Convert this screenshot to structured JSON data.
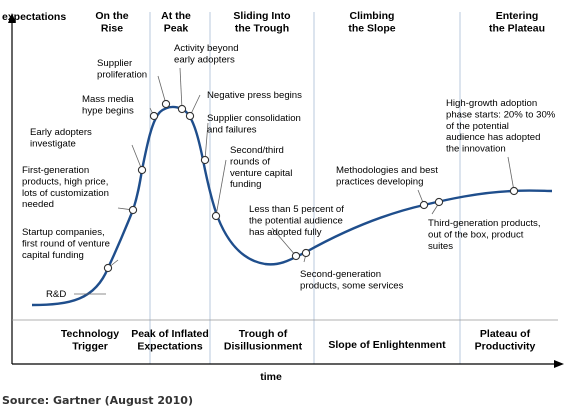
{
  "axes": {
    "y_label": "expectations",
    "x_label": "time"
  },
  "colors": {
    "curve": "#1f4e8c",
    "phase_line": "#b8c8dc",
    "axis": "#000000",
    "marker_fill": "#ffffff",
    "marker_stroke": "#333333"
  },
  "phase_headers": [
    {
      "lines": [
        "On the",
        "Rise"
      ]
    },
    {
      "lines": [
        "At the",
        "Peak"
      ]
    },
    {
      "lines": [
        "Sliding Into",
        "the Trough"
      ]
    },
    {
      "lines": [
        "Climbing",
        "the Slope"
      ]
    },
    {
      "lines": [
        "Entering",
        "the Plateau"
      ]
    }
  ],
  "bottom_phases": [
    {
      "lines": [
        "Technology",
        "Trigger"
      ]
    },
    {
      "lines": [
        "Peak of Inflated",
        "Expectations"
      ]
    },
    {
      "lines": [
        "Trough of",
        "Disillusionment"
      ]
    },
    {
      "lines": [
        "Slope of Enlightenment"
      ]
    },
    {
      "lines": [
        "Plateau of",
        "Productivity"
      ]
    }
  ],
  "annotations": [
    {
      "lines": [
        "R&D"
      ]
    },
    {
      "lines": [
        "Startup companies,",
        "first round of venture",
        "capital funding"
      ]
    },
    {
      "lines": [
        "First-generation",
        "products, high price,",
        "lots of customization",
        "needed"
      ]
    },
    {
      "lines": [
        "Early adopters",
        "investigate"
      ]
    },
    {
      "lines": [
        "Mass media",
        "hype begins"
      ]
    },
    {
      "lines": [
        "Supplier",
        "proliferation"
      ]
    },
    {
      "lines": [
        "Activity beyond",
        "early adopters"
      ]
    },
    {
      "lines": [
        "Negative press begins"
      ]
    },
    {
      "lines": [
        "Supplier consolidation",
        "and failures"
      ]
    },
    {
      "lines": [
        "Second/third",
        "rounds of",
        "venture capital",
        "funding"
      ]
    },
    {
      "lines": [
        "Less than 5 percent of",
        "the potential audience",
        "has adopted fully"
      ]
    },
    {
      "lines": [
        "Second-generation",
        "products, some services"
      ]
    },
    {
      "lines": [
        "Methodologies and best",
        "practices developing"
      ]
    },
    {
      "lines": [
        "Third-generation products,",
        "out of the box, product",
        "suites"
      ]
    },
    {
      "lines": [
        "High-growth adoption",
        "phase starts: 20% to 30%",
        "of the potential",
        "audience has adopted",
        "the innovation"
      ]
    }
  ],
  "source": "Source: Gartner (August 2010)"
}
